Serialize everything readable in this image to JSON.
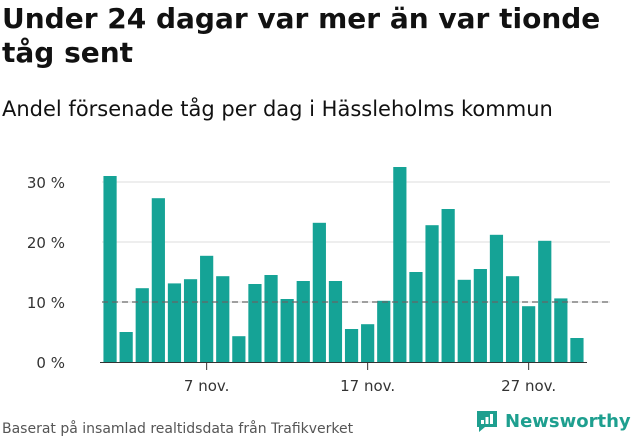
{
  "header": {
    "title": "Under 24 dagar var mer än var tionde tåg sent",
    "subtitle": "Andel försenade tåg per dag i Hässleholms kommun"
  },
  "footer": {
    "source": "Baserat på insamlad realtidsdata från Trafikverket",
    "brand": "Newsworthy"
  },
  "colors": {
    "bar": "#15a396",
    "grid": "#dddddd",
    "reference_line": "#666666",
    "brand": "#1e9f8f"
  },
  "chart_data": {
    "type": "bar",
    "x": [
      "1 nov.",
      "2 nov.",
      "3 nov.",
      "4 nov.",
      "5 nov.",
      "6 nov.",
      "7 nov.",
      "8 nov.",
      "9 nov.",
      "10 nov.",
      "11 nov.",
      "12 nov.",
      "13 nov.",
      "14 nov.",
      "15 nov.",
      "16 nov.",
      "17 nov.",
      "18 nov.",
      "19 nov.",
      "20 nov.",
      "21 nov.",
      "22 nov.",
      "23 nov.",
      "24 nov.",
      "25 nov.",
      "26 nov.",
      "27 nov.",
      "28 nov.",
      "29 nov.",
      "30 nov."
    ],
    "values": [
      31,
      5,
      12.3,
      27.3,
      13.1,
      13.8,
      17.7,
      14.3,
      4.3,
      13,
      14.5,
      10.5,
      13.5,
      23.2,
      13.5,
      5.5,
      6.3,
      10.2,
      32.5,
      15,
      22.8,
      25.5,
      13.7,
      15.5,
      21.2,
      14.3,
      9.3,
      20.2,
      10.6,
      4
    ],
    "unit": "%",
    "ylim": [
      0,
      35
    ],
    "yticks": [
      0,
      10,
      20,
      30
    ],
    "ytick_labels": [
      "0 %",
      "10 %",
      "20 %",
      "30 %"
    ],
    "xticks": [
      "7 nov.",
      "17 nov.",
      "27 nov."
    ],
    "reference_line": 10,
    "grid": true,
    "xlabel": "",
    "ylabel": ""
  }
}
